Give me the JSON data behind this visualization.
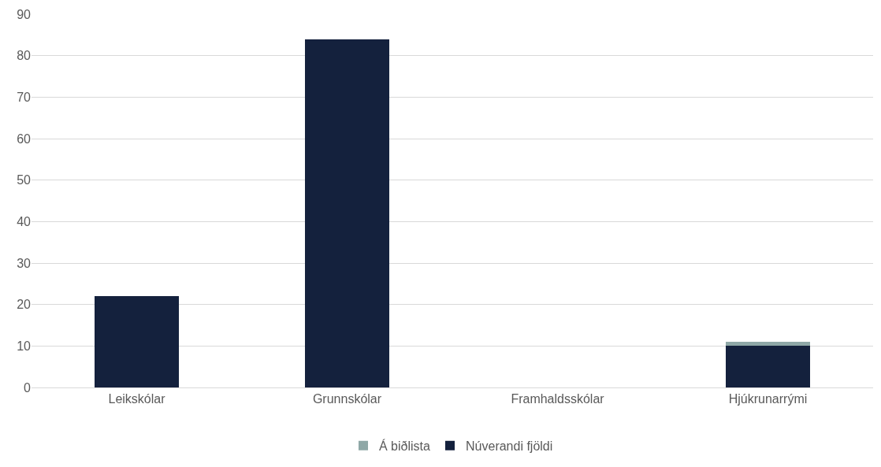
{
  "chart_data": {
    "type": "bar",
    "stacked": true,
    "categories": [
      "Leikskólar",
      "Grunnskólar",
      "Framhaldsskólar",
      "Hjúkrunarrými"
    ],
    "series": [
      {
        "name": "Núverandi fjöldi",
        "color": "#14213d",
        "values": [
          22,
          84,
          0,
          10
        ]
      },
      {
        "name": "Á biðlista",
        "color": "#8fa8a7",
        "values": [
          0,
          0,
          0,
          1
        ]
      }
    ],
    "ylim": [
      0,
      90
    ],
    "yticks": [
      0,
      10,
      20,
      30,
      40,
      50,
      60,
      70,
      80,
      90
    ],
    "grid": "y",
    "legend": "bottom"
  }
}
